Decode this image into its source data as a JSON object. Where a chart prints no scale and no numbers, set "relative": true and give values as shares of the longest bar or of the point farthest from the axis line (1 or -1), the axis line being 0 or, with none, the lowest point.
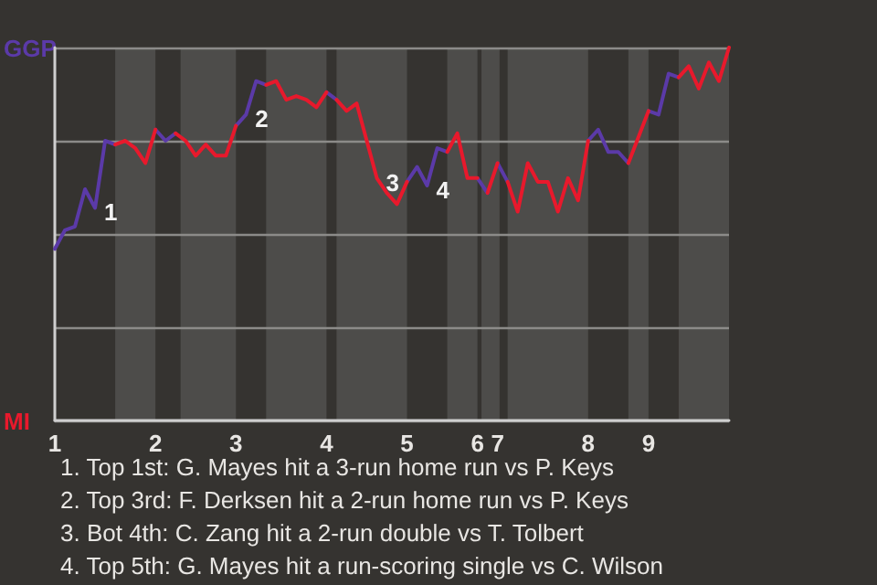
{
  "chart_data": {
    "type": "line",
    "relative": true,
    "grid": "y",
    "legend": false,
    "categories": [
      "1",
      null,
      null,
      null,
      null,
      null,
      null,
      null,
      null,
      null,
      "2",
      null,
      null,
      null,
      null,
      null,
      null,
      null,
      "3",
      null,
      null,
      null,
      null,
      null,
      null,
      null,
      null,
      "4",
      null,
      null,
      null,
      null,
      null,
      null,
      null,
      "5",
      null,
      null,
      null,
      null,
      null,
      null,
      "6",
      null,
      "7",
      null,
      null,
      null,
      null,
      null,
      null,
      null,
      null,
      "8",
      null,
      null,
      null,
      null,
      null,
      "9",
      null,
      null,
      null,
      null,
      null,
      null,
      null,
      null
    ],
    "series": [
      {
        "name": "GGP",
        "color": "#5b3aa8",
        "values": [
          0.46,
          0.51,
          0.52,
          0.62,
          0.57,
          0.75,
          0.74,
          null,
          null,
          null,
          0.78,
          0.75,
          0.77,
          null,
          null,
          null,
          null,
          null,
          0.79,
          0.82,
          0.91,
          0.9,
          null,
          null,
          null,
          null,
          null,
          0.88,
          0.86,
          null,
          null,
          null,
          null,
          null,
          null,
          0.64,
          0.68,
          0.63,
          0.73,
          0.72,
          null,
          null,
          0.65,
          0.61,
          null,
          null,
          null,
          null,
          null,
          null,
          null,
          null,
          null,
          0.75,
          0.78,
          0.72,
          0.72,
          0.69,
          null,
          0.83,
          0.82,
          0.93,
          0.92,
          null,
          null,
          null,
          null,
          null
        ]
      },
      {
        "color": "#5b3aa8",
        "values": [
          null,
          null,
          null,
          null,
          null,
          null,
          null,
          null,
          null,
          null,
          null,
          null,
          null,
          null,
          null,
          null,
          null,
          null,
          null,
          null,
          null,
          null,
          null,
          null,
          null,
          null,
          null,
          null,
          null,
          null,
          null,
          null,
          null,
          null,
          null,
          null,
          null,
          null,
          null,
          null,
          null,
          null,
          null,
          null,
          0.69,
          0.64,
          null,
          null,
          null,
          null,
          null,
          null,
          null,
          null,
          null,
          null,
          null,
          null,
          null,
          null,
          null,
          null,
          null,
          null,
          null,
          null,
          null,
          null
        ]
      },
      {
        "name": "MI",
        "color": "#e8192c",
        "values": [
          null,
          null,
          null,
          null,
          null,
          null,
          0.74,
          0.75,
          0.73,
          0.69,
          0.78,
          null,
          0.77,
          0.75,
          0.71,
          0.74,
          0.71,
          0.71,
          0.79,
          null,
          null,
          0.9,
          0.91,
          0.86,
          0.87,
          0.86,
          0.84,
          0.88,
          null,
          null,
          null,
          null,
          null,
          null,
          null,
          null,
          null,
          null,
          null,
          0.72,
          0.77,
          0.65,
          0.65,
          null,
          null,
          0.64,
          0.56,
          0.69,
          0.64,
          0.64,
          0.56,
          0.65,
          0.59,
          0.75,
          null,
          null,
          null,
          0.69,
          0.76,
          0.83,
          null,
          null,
          0.92,
          0.95,
          0.89,
          0.96,
          0.91,
          1
        ]
      },
      {
        "color": "#e8192c",
        "values": [
          null,
          null,
          null,
          null,
          null,
          null,
          null,
          null,
          null,
          null,
          null,
          null,
          null,
          null,
          null,
          null,
          null,
          null,
          null,
          null,
          null,
          null,
          null,
          null,
          null,
          null,
          null,
          null,
          0.86,
          0.83,
          0.85,
          0.75,
          0.65,
          0.61,
          0.58,
          0.64,
          null,
          null,
          null,
          null,
          null,
          null,
          null,
          0.61,
          0.69,
          null,
          null,
          null,
          null,
          null,
          null,
          null,
          null,
          null,
          null,
          null,
          null,
          null,
          null,
          null,
          null,
          null,
          null,
          null,
          null,
          null,
          null,
          null
        ]
      }
    ],
    "annotations": [
      "1",
      "2",
      "3",
      "4",
      "1. Top 1st: G. Mayes hit a 3-run home run vs P. Keys",
      "2. Top 3rd: F. Derksen hit a 2-run home run vs P. Keys",
      "3. Bot 4th: C. Zang hit a 2-run double vs T. Tolbert",
      "4. Top 5th: G. Mayes hit a run-scoring single vs C. Wilson"
    ]
  }
}
